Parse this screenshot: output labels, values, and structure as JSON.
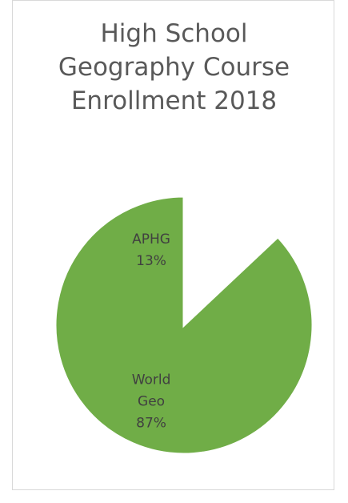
{
  "chart_data": {
    "type": "pie",
    "title": "High School\nGeography Course\nEnrollment 2018",
    "slices": [
      {
        "label": "APHG",
        "value": 13,
        "value_label": "13%",
        "color": "#4472c4"
      },
      {
        "label": "World\nGeo",
        "value": 87,
        "value_label": "87%",
        "color": "#70ad47"
      }
    ],
    "legend": "none",
    "data_labels": "inside"
  }
}
